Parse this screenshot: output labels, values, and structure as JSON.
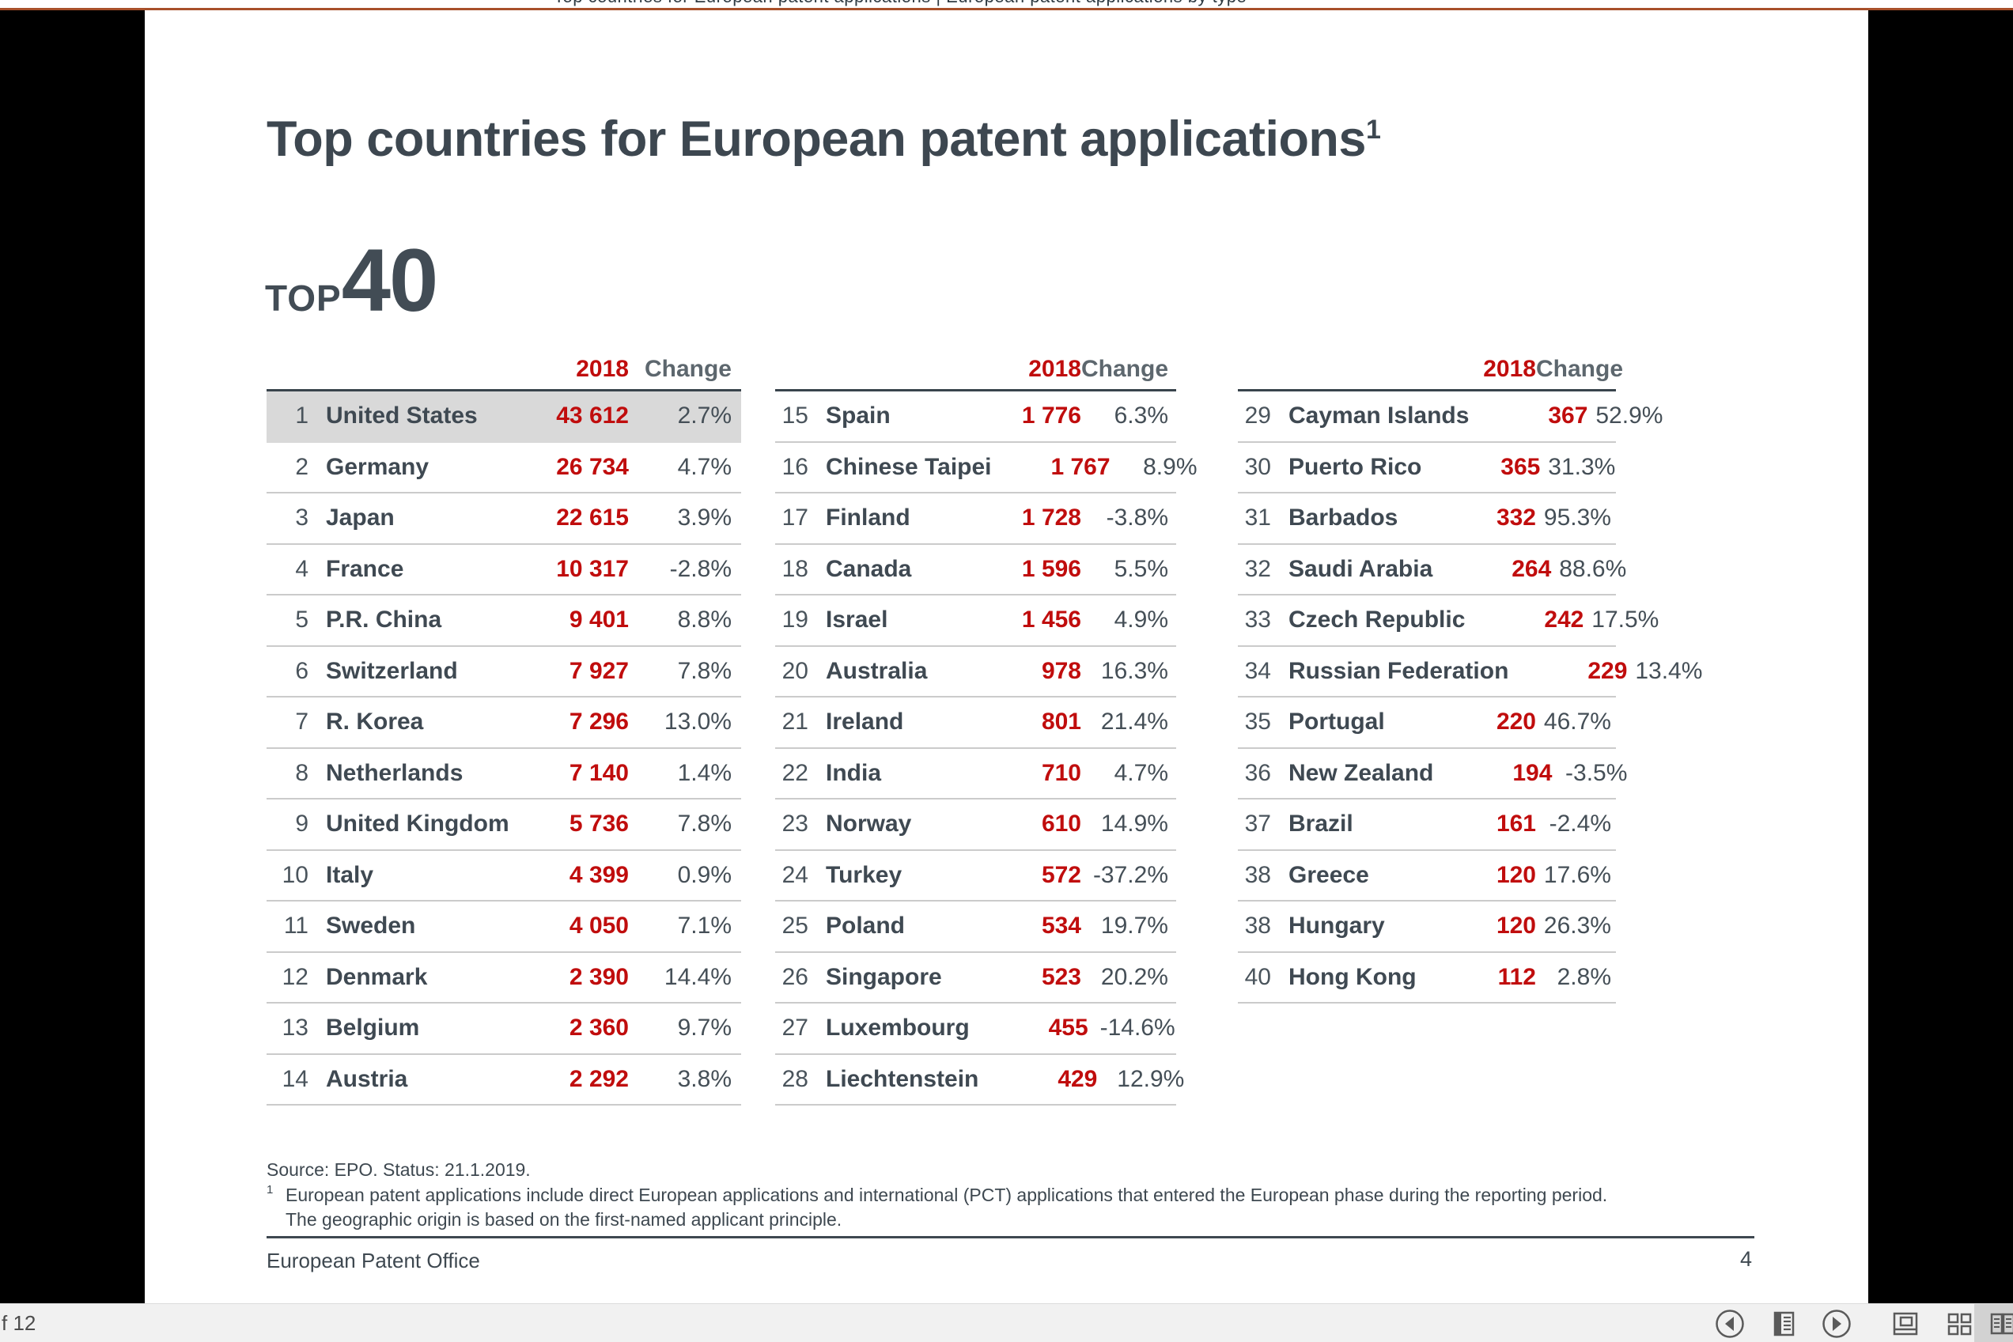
{
  "window": {
    "clipped_title": "Top countries for European patent applications | European patent applications by type",
    "accent_color": "#a8502a"
  },
  "slide": {
    "title": "Top countries for European patent applications",
    "title_superscript": "1",
    "top_label": "TOP",
    "top_number": "40",
    "col_header_year": "2018",
    "col_header_change": "Change",
    "value_color": "#c00d0d",
    "tables": [
      {
        "rows": [
          {
            "rank": "1",
            "country": "United States",
            "value": "43 612",
            "change": "2.7%",
            "highlight": true
          },
          {
            "rank": "2",
            "country": "Germany",
            "value": "26 734",
            "change": "4.7%"
          },
          {
            "rank": "3",
            "country": "Japan",
            "value": "22 615",
            "change": "3.9%"
          },
          {
            "rank": "4",
            "country": "France",
            "value": "10 317",
            "change": "-2.8%"
          },
          {
            "rank": "5",
            "country": "P.R. China",
            "value": "9 401",
            "change": "8.8%"
          },
          {
            "rank": "6",
            "country": "Switzerland",
            "value": "7 927",
            "change": "7.8%"
          },
          {
            "rank": "7",
            "country": "R. Korea",
            "value": "7 296",
            "change": "13.0%"
          },
          {
            "rank": "8",
            "country": "Netherlands",
            "value": "7 140",
            "change": "1.4%"
          },
          {
            "rank": "9",
            "country": "United Kingdom",
            "value": "5 736",
            "change": "7.8%"
          },
          {
            "rank": "10",
            "country": "Italy",
            "value": "4 399",
            "change": "0.9%"
          },
          {
            "rank": "11",
            "country": "Sweden",
            "value": "4 050",
            "change": "7.1%"
          },
          {
            "rank": "12",
            "country": "Denmark",
            "value": "2 390",
            "change": "14.4%"
          },
          {
            "rank": "13",
            "country": "Belgium",
            "value": "2 360",
            "change": "9.7%"
          },
          {
            "rank": "14",
            "country": "Austria",
            "value": "2 292",
            "change": "3.8%"
          }
        ]
      },
      {
        "rows": [
          {
            "rank": "15",
            "country": "Spain",
            "value": "1 776",
            "change": "6.3%"
          },
          {
            "rank": "16",
            "country": "Chinese Taipei",
            "value": "1 767",
            "change": "8.9%"
          },
          {
            "rank": "17",
            "country": "Finland",
            "value": "1 728",
            "change": "-3.8%"
          },
          {
            "rank": "18",
            "country": "Canada",
            "value": "1 596",
            "change": "5.5%"
          },
          {
            "rank": "19",
            "country": "Israel",
            "value": "1 456",
            "change": "4.9%"
          },
          {
            "rank": "20",
            "country": "Australia",
            "value": "978",
            "change": "16.3%"
          },
          {
            "rank": "21",
            "country": "Ireland",
            "value": "801",
            "change": "21.4%"
          },
          {
            "rank": "22",
            "country": "India",
            "value": "710",
            "change": "4.7%"
          },
          {
            "rank": "23",
            "country": "Norway",
            "value": "610",
            "change": "14.9%"
          },
          {
            "rank": "24",
            "country": "Turkey",
            "value": "572",
            "change": "-37.2%"
          },
          {
            "rank": "25",
            "country": "Poland",
            "value": "534",
            "change": "19.7%"
          },
          {
            "rank": "26",
            "country": "Singapore",
            "value": "523",
            "change": "20.2%"
          },
          {
            "rank": "27",
            "country": "Luxembourg",
            "value": "455",
            "change": "-14.6%"
          },
          {
            "rank": "28",
            "country": "Liechtenstein",
            "value": "429",
            "change": "12.9%"
          }
        ]
      },
      {
        "rows": [
          {
            "rank": "29",
            "country": "Cayman Islands",
            "value": "367",
            "change": "52.9%"
          },
          {
            "rank": "30",
            "country": "Puerto Rico",
            "value": "365",
            "change": "31.3%"
          },
          {
            "rank": "31",
            "country": "Barbados",
            "value": "332",
            "change": "95.3%"
          },
          {
            "rank": "32",
            "country": "Saudi Arabia",
            "value": "264",
            "change": "88.6%"
          },
          {
            "rank": "33",
            "country": "Czech Republic",
            "value": "242",
            "change": "17.5%"
          },
          {
            "rank": "34",
            "country": "Russian Federation",
            "value": "229",
            "change": "13.4%"
          },
          {
            "rank": "35",
            "country": "Portugal",
            "value": "220",
            "change": "46.7%"
          },
          {
            "rank": "36",
            "country": "New Zealand",
            "value": "194",
            "change": "-3.5%"
          },
          {
            "rank": "37",
            "country": "Brazil",
            "value": "161",
            "change": "-2.4%"
          },
          {
            "rank": "38",
            "country": "Greece",
            "value": "120",
            "change": "17.6%"
          },
          {
            "rank": "38",
            "country": "Hungary",
            "value": "120",
            "change": "26.3%"
          },
          {
            "rank": "40",
            "country": "Hong Kong",
            "value": "112",
            "change": "2.8%"
          }
        ]
      }
    ],
    "source_line": "Source: EPO. Status: 21.1.2019.",
    "footnote_marker": "1",
    "footnote_line1": "European patent applications include direct European applications and international (PCT) applications that entered the European phase during the reporting period.",
    "footnote_line2": "The geographic origin is based on the first-named applicant principle.",
    "footer_left": "European Patent Office",
    "page_number": "4"
  },
  "toolbar": {
    "page_indicator_fragment": "f 12",
    "icons": [
      "previous-page-icon",
      "single-page-view-icon",
      "next-page-icon",
      "fit-page-icon",
      "thumbnail-grid-icon",
      "book-view-icon"
    ],
    "selected_icon": "book-view-icon"
  }
}
